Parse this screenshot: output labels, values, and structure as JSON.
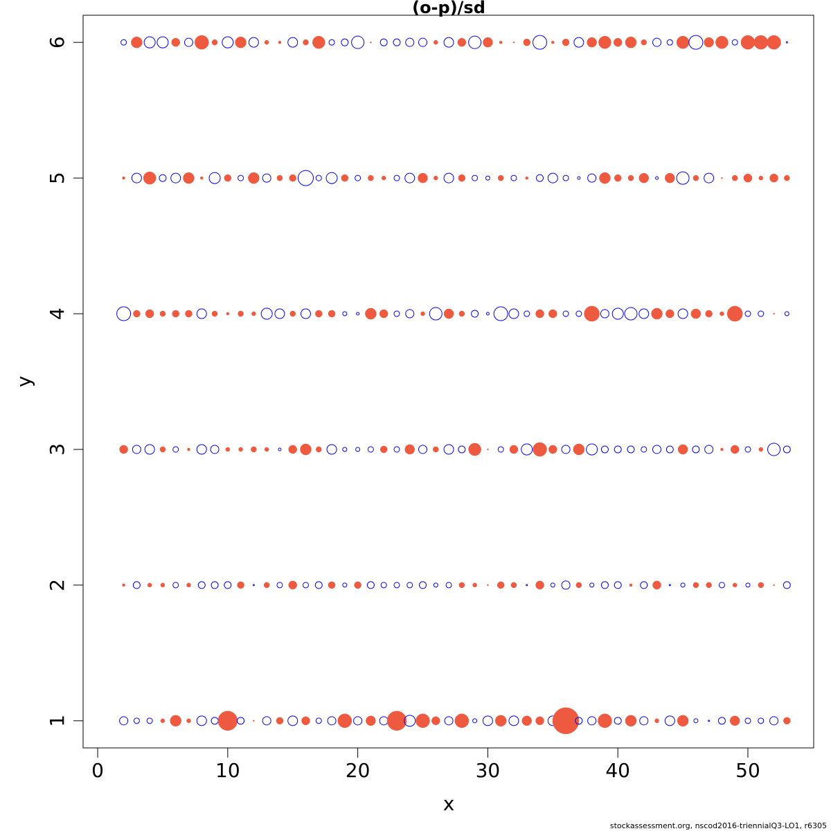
{
  "chart_data": {
    "type": "bubble",
    "title": "(o-p)/sd",
    "xlabel": "x",
    "ylabel": "y",
    "footnote": "stockassessment.org, nscod2016-triennialQ3-LO1, r6305",
    "xlim": [
      -1.12,
      55.06
    ],
    "ylim": [
      0.8,
      6.2
    ],
    "xticks": [
      0,
      10,
      20,
      30,
      40,
      50
    ],
    "yticks": [
      1,
      2,
      3,
      4,
      5,
      6
    ],
    "positive_color": "#ee5a40",
    "negative_color": "#0000ff",
    "x": [
      2,
      3,
      4,
      5,
      6,
      7,
      8,
      9,
      10,
      11,
      12,
      13,
      14,
      15,
      16,
      17,
      18,
      19,
      20,
      21,
      22,
      23,
      24,
      25,
      26,
      27,
      28,
      29,
      30,
      31,
      32,
      33,
      34,
      35,
      36,
      37,
      38,
      39,
      40,
      41,
      42,
      43,
      44,
      45,
      46,
      47,
      48,
      49,
      50,
      51,
      52,
      53
    ],
    "y": [
      1,
      2,
      3,
      4,
      5,
      6
    ],
    "values": [
      [
        -0.36,
        -0.16,
        -0.16,
        0.09,
        0.64,
        0.09,
        -0.49,
        -0.25,
        1.96,
        -0.25,
        0.01,
        -0.36,
        0.25,
        -0.49,
        0.36,
        -0.16,
        -0.36,
        1.0,
        -0.36,
        0.49,
        -0.36,
        1.96,
        -0.64,
        1.0,
        0.36,
        -0.36,
        1.0,
        -0.09,
        -0.49,
        0.64,
        -0.49,
        0.49,
        0.36,
        -0.49,
        3.61,
        -0.25,
        -0.36,
        1.0,
        -0.25,
        0.64,
        -0.36,
        0.09,
        -0.49,
        0.64,
        -0.09,
        -0.01,
        -0.25,
        0.49,
        -0.16,
        -0.16,
        -0.36,
        0.25
      ],
      [
        0.04,
        -0.25,
        0.09,
        0.09,
        -0.16,
        0.09,
        -0.25,
        -0.25,
        -0.25,
        0.25,
        -0.01,
        0.16,
        -0.16,
        0.36,
        -0.16,
        -0.25,
        0.25,
        -0.09,
        0.25,
        -0.25,
        -0.16,
        -0.16,
        -0.16,
        -0.25,
        -0.09,
        -0.16,
        0.16,
        0.09,
        0.01,
        0.25,
        0.16,
        -0.01,
        0.36,
        -0.09,
        -0.36,
        0.16,
        -0.09,
        -0.25,
        -0.25,
        0.04,
        -0.25,
        0.36,
        -0.01,
        -0.09,
        0.16,
        0.16,
        -0.16,
        0.09,
        -0.09,
        0.16,
        0.01,
        -0.25
      ],
      [
        0.36,
        -0.36,
        -0.49,
        0.16,
        -0.16,
        0.04,
        -0.49,
        -0.36,
        0.09,
        0.09,
        0.16,
        0.09,
        -0.04,
        0.36,
        0.64,
        0.16,
        -0.49,
        -0.09,
        -0.09,
        -0.16,
        0.25,
        -0.16,
        0.49,
        -0.36,
        0.16,
        -0.49,
        -0.25,
        0.81,
        0.01,
        -0.16,
        0.36,
        -0.64,
        1.0,
        0.36,
        -0.36,
        0.64,
        -0.64,
        -0.25,
        -0.25,
        -0.25,
        -0.16,
        -0.36,
        -0.25,
        0.49,
        -0.25,
        -0.36,
        0.04,
        0.36,
        -0.16,
        0.09,
        -0.81,
        -0.25
      ],
      [
        -1.0,
        0.25,
        0.36,
        0.16,
        0.25,
        0.25,
        -0.49,
        0.16,
        0.04,
        0.16,
        0.09,
        -0.64,
        -0.49,
        0.16,
        -0.49,
        0.25,
        0.25,
        -0.09,
        -0.04,
        0.64,
        0.36,
        -0.16,
        -0.36,
        0.09,
        -0.81,
        0.49,
        0.16,
        -0.25,
        -0.04,
        -1.0,
        -0.49,
        -0.16,
        0.36,
        0.36,
        -0.16,
        -0.16,
        1.21,
        -0.36,
        -0.64,
        -0.81,
        -0.49,
        0.64,
        0.36,
        -0.49,
        0.49,
        0.25,
        0.09,
        1.21,
        -0.16,
        -0.16,
        0.01,
        -0.09
      ],
      [
        0.04,
        -0.49,
        0.81,
        -0.25,
        -0.49,
        0.64,
        0.04,
        -0.64,
        0.25,
        -0.16,
        0.64,
        -0.36,
        0.16,
        0.25,
        -1.21,
        -0.16,
        -0.64,
        0.25,
        -0.16,
        0.16,
        0.09,
        -0.16,
        -0.49,
        0.49,
        0.09,
        -0.49,
        0.25,
        -0.16,
        -0.09,
        0.16,
        -0.16,
        0.04,
        -0.25,
        -0.49,
        -0.16,
        -0.04,
        -0.36,
        0.64,
        0.25,
        0.16,
        0.49,
        -0.04,
        0.49,
        -0.81,
        0.16,
        -0.49,
        0.01,
        0.16,
        0.36,
        0.09,
        0.36,
        0.16
      ],
      [
        -0.16,
        0.64,
        -0.64,
        -0.64,
        0.36,
        -0.36,
        1.0,
        0.16,
        -0.64,
        0.64,
        -0.49,
        0.09,
        0.04,
        -0.49,
        0.16,
        0.81,
        -0.16,
        -0.25,
        -0.81,
        0.01,
        -0.25,
        -0.25,
        -0.36,
        -0.36,
        0.09,
        -0.49,
        0.36,
        -0.81,
        0.49,
        0.04,
        0.01,
        0.25,
        -1.0,
        0.04,
        0.25,
        -0.49,
        0.49,
        0.81,
        0.36,
        0.64,
        0.16,
        -0.36,
        -0.16,
        0.81,
        -1.0,
        0.49,
        0.81,
        -0.16,
        1.0,
        1.0,
        1.0,
        -0.01
      ]
    ]
  }
}
